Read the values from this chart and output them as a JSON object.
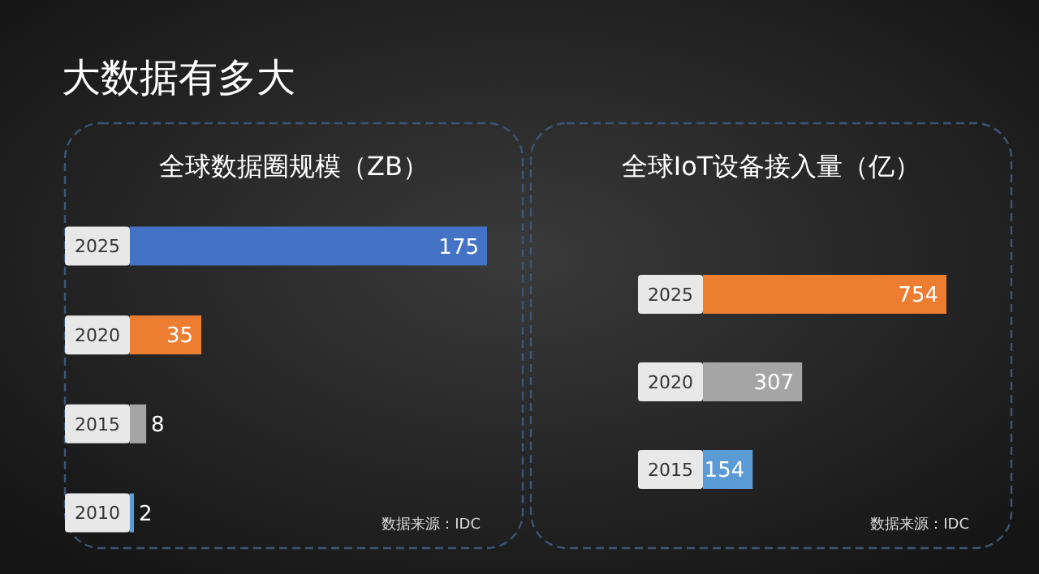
{
  "chart_data": [
    {
      "type": "other",
      "title": "大数据有多大"
    },
    {
      "type": "bar",
      "orientation": "horizontal",
      "title": "全球数据圈规模（ZB）",
      "categories": [
        "2025",
        "2020",
        "2015",
        "2010"
      ],
      "values": [
        175,
        35,
        8,
        2
      ],
      "colors": [
        "#4472c4",
        "#ed7d31",
        "#a5a5a5",
        "#5b9bd5"
      ],
      "data_labels": true,
      "annotations": [
        "数据来源：IDC"
      ]
    },
    {
      "type": "bar",
      "orientation": "horizontal",
      "title": "全球IoT设备接入量（亿）",
      "categories": [
        "2025",
        "2020",
        "2015"
      ],
      "values": [
        754,
        307,
        154
      ],
      "colors": [
        "#ed7d31",
        "#a5a5a5",
        "#5b9bd5"
      ],
      "data_labels": true,
      "annotations": [
        "数据来源：IDC"
      ]
    }
  ]
}
